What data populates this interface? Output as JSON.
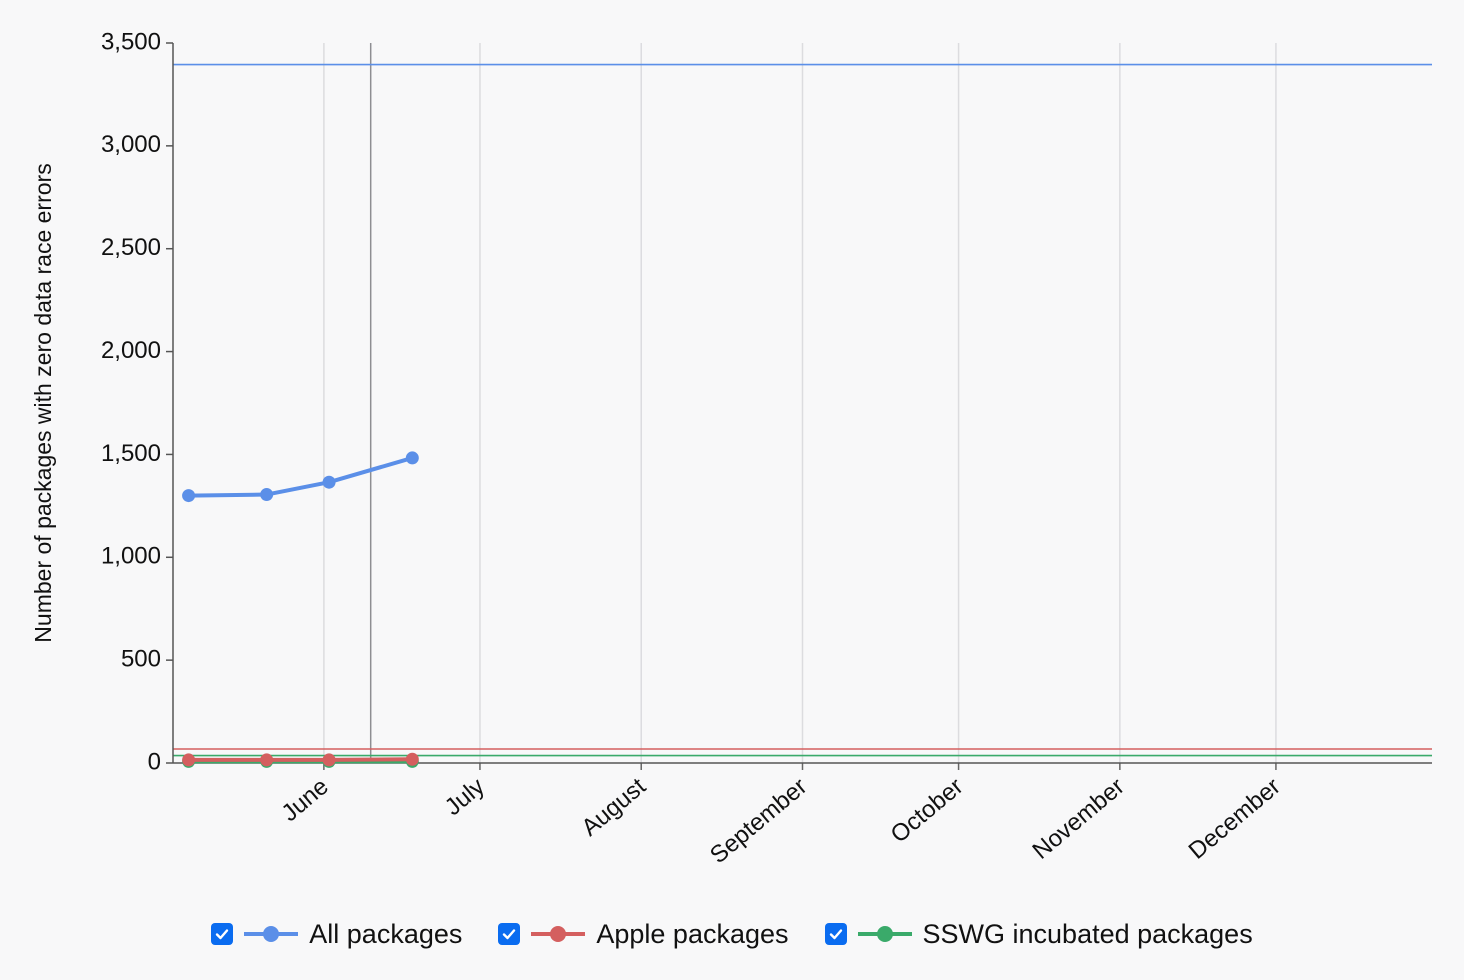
{
  "chart_data": {
    "type": "line",
    "title": "",
    "xlabel": "",
    "ylabel": "Number of packages with zero data race errors",
    "ylim": [
      0,
      3500
    ],
    "y_ticks": [
      0,
      500,
      1000,
      1500,
      2000,
      2500,
      3000,
      3500
    ],
    "y_tick_labels": [
      "0",
      "500",
      "1,000",
      "1,500",
      "2,000",
      "2,500",
      "3,000",
      "3,500"
    ],
    "x_range": [
      "2024-05-03",
      "2024-12-31"
    ],
    "x_ticks": [
      {
        "date": "2024-06-01",
        "label": "June"
      },
      {
        "date": "2024-07-01",
        "label": "July"
      },
      {
        "date": "2024-08-01",
        "label": "August"
      },
      {
        "date": "2024-09-01",
        "label": "September"
      },
      {
        "date": "2024-10-01",
        "label": "October"
      },
      {
        "date": "2024-11-01",
        "label": "November"
      },
      {
        "date": "2024-12-01",
        "label": "December"
      }
    ],
    "marker_line_date": "2024-06-10",
    "grid": true,
    "legend_position": "bottom",
    "series": [
      {
        "name": "All packages",
        "color": "#5b8fe8",
        "x": [
          "2024-05-06",
          "2024-05-21",
          "2024-06-02",
          "2024-06-18"
        ],
        "values": [
          1300,
          1305,
          1365,
          1483
        ],
        "target": 3395
      },
      {
        "name": "Apple packages",
        "color": "#d45f5f",
        "x": [
          "2024-05-06",
          "2024-05-21",
          "2024-06-02",
          "2024-06-18"
        ],
        "values": [
          15,
          15,
          15,
          18
        ],
        "target": 68
      },
      {
        "name": "SSWG incubated packages",
        "color": "#3aaa6a",
        "x": [
          "2024-05-06",
          "2024-05-21",
          "2024-06-02",
          "2024-06-18"
        ],
        "values": [
          8,
          8,
          8,
          8
        ],
        "target": 36
      }
    ]
  },
  "legend": {
    "items": [
      {
        "label": "All packages",
        "checked": true,
        "color": "#5b8fe8"
      },
      {
        "label": "Apple packages",
        "checked": true,
        "color": "#d45f5f"
      },
      {
        "label": "SSWG incubated packages",
        "checked": true,
        "color": "#3aaa6a"
      }
    ]
  }
}
